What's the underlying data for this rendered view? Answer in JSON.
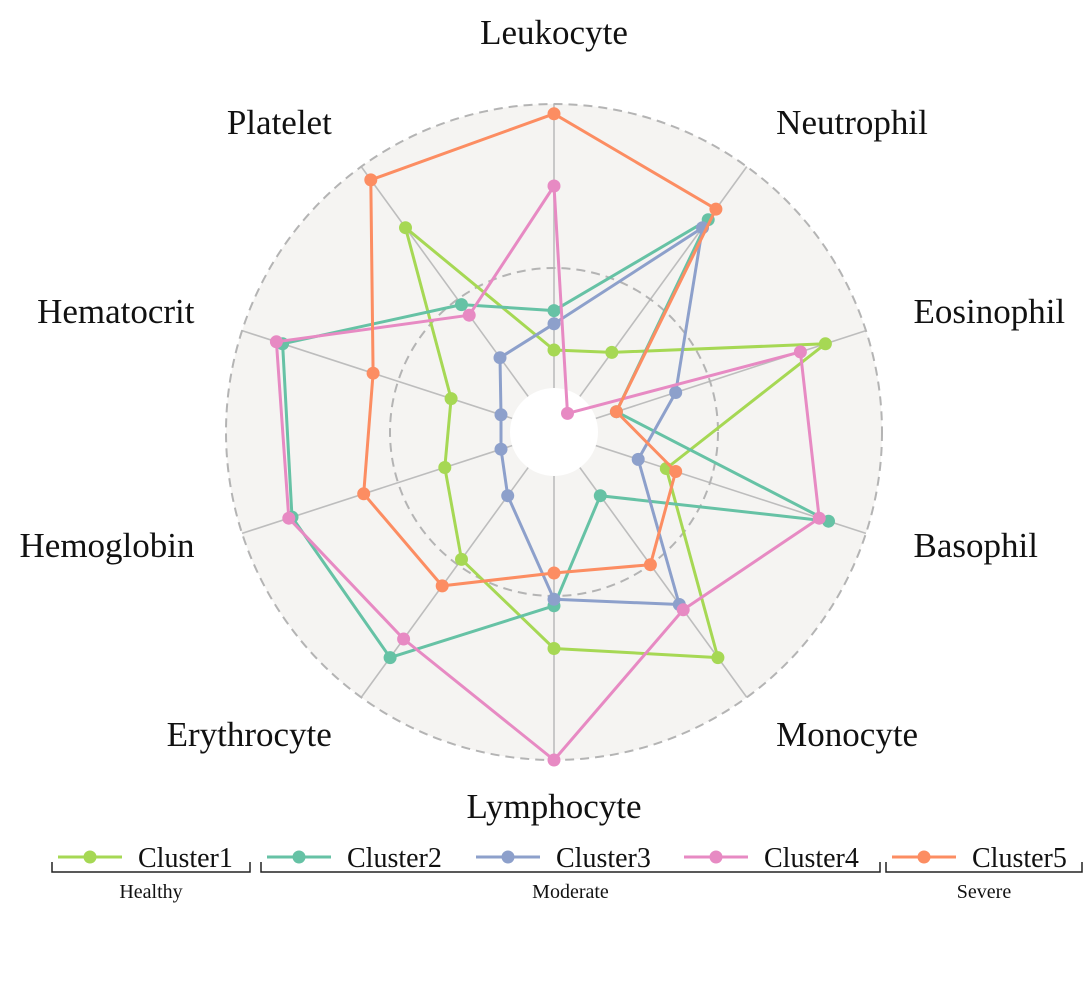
{
  "chart_data": {
    "type": "radar",
    "axes": [
      "Leukocyte",
      "Neutrophil",
      "Eosinophil",
      "Basophil",
      "Monocyte",
      "Lymphocyte",
      "Erythrocyte",
      "Hemoglobin",
      "Hematocrit",
      "Platelet"
    ],
    "rlim": [
      0,
      1
    ],
    "grid": {
      "rings": [
        0.5,
        1.0
      ],
      "ring_style": "dashed",
      "spokes": true
    },
    "legend_position": "bottom",
    "series": [
      {
        "name": "Cluster1",
        "color": "#a6d854",
        "values": [
          0.25,
          0.3,
          0.87,
          0.36,
          0.85,
          0.66,
          0.48,
          0.35,
          0.33,
          0.77
        ]
      },
      {
        "name": "Cluster2",
        "color": "#66c2a5",
        "values": [
          0.37,
          0.8,
          0.2,
          0.88,
          0.24,
          0.53,
          0.85,
          0.84,
          0.87,
          0.48
        ]
      },
      {
        "name": "Cluster3",
        "color": "#8da0cb",
        "values": [
          0.33,
          0.77,
          0.39,
          0.27,
          0.65,
          0.51,
          0.24,
          0.17,
          0.17,
          0.28
        ]
      },
      {
        "name": "Cluster4",
        "color": "#e78ac3",
        "values": [
          0.75,
          0.07,
          0.79,
          0.85,
          0.67,
          1.0,
          0.78,
          0.85,
          0.89,
          0.44
        ]
      },
      {
        "name": "Cluster5",
        "color": "#fc8d62",
        "values": [
          0.97,
          0.84,
          0.2,
          0.39,
          0.5,
          0.43,
          0.58,
          0.61,
          0.58,
          0.95
        ]
      }
    ],
    "legend_groups": [
      {
        "label": "Healthy",
        "series": [
          "Cluster1"
        ]
      },
      {
        "label": "Moderate",
        "series": [
          "Cluster2",
          "Cluster3",
          "Cluster4"
        ]
      },
      {
        "label": "Severe",
        "series": [
          "Cluster5"
        ]
      }
    ]
  }
}
